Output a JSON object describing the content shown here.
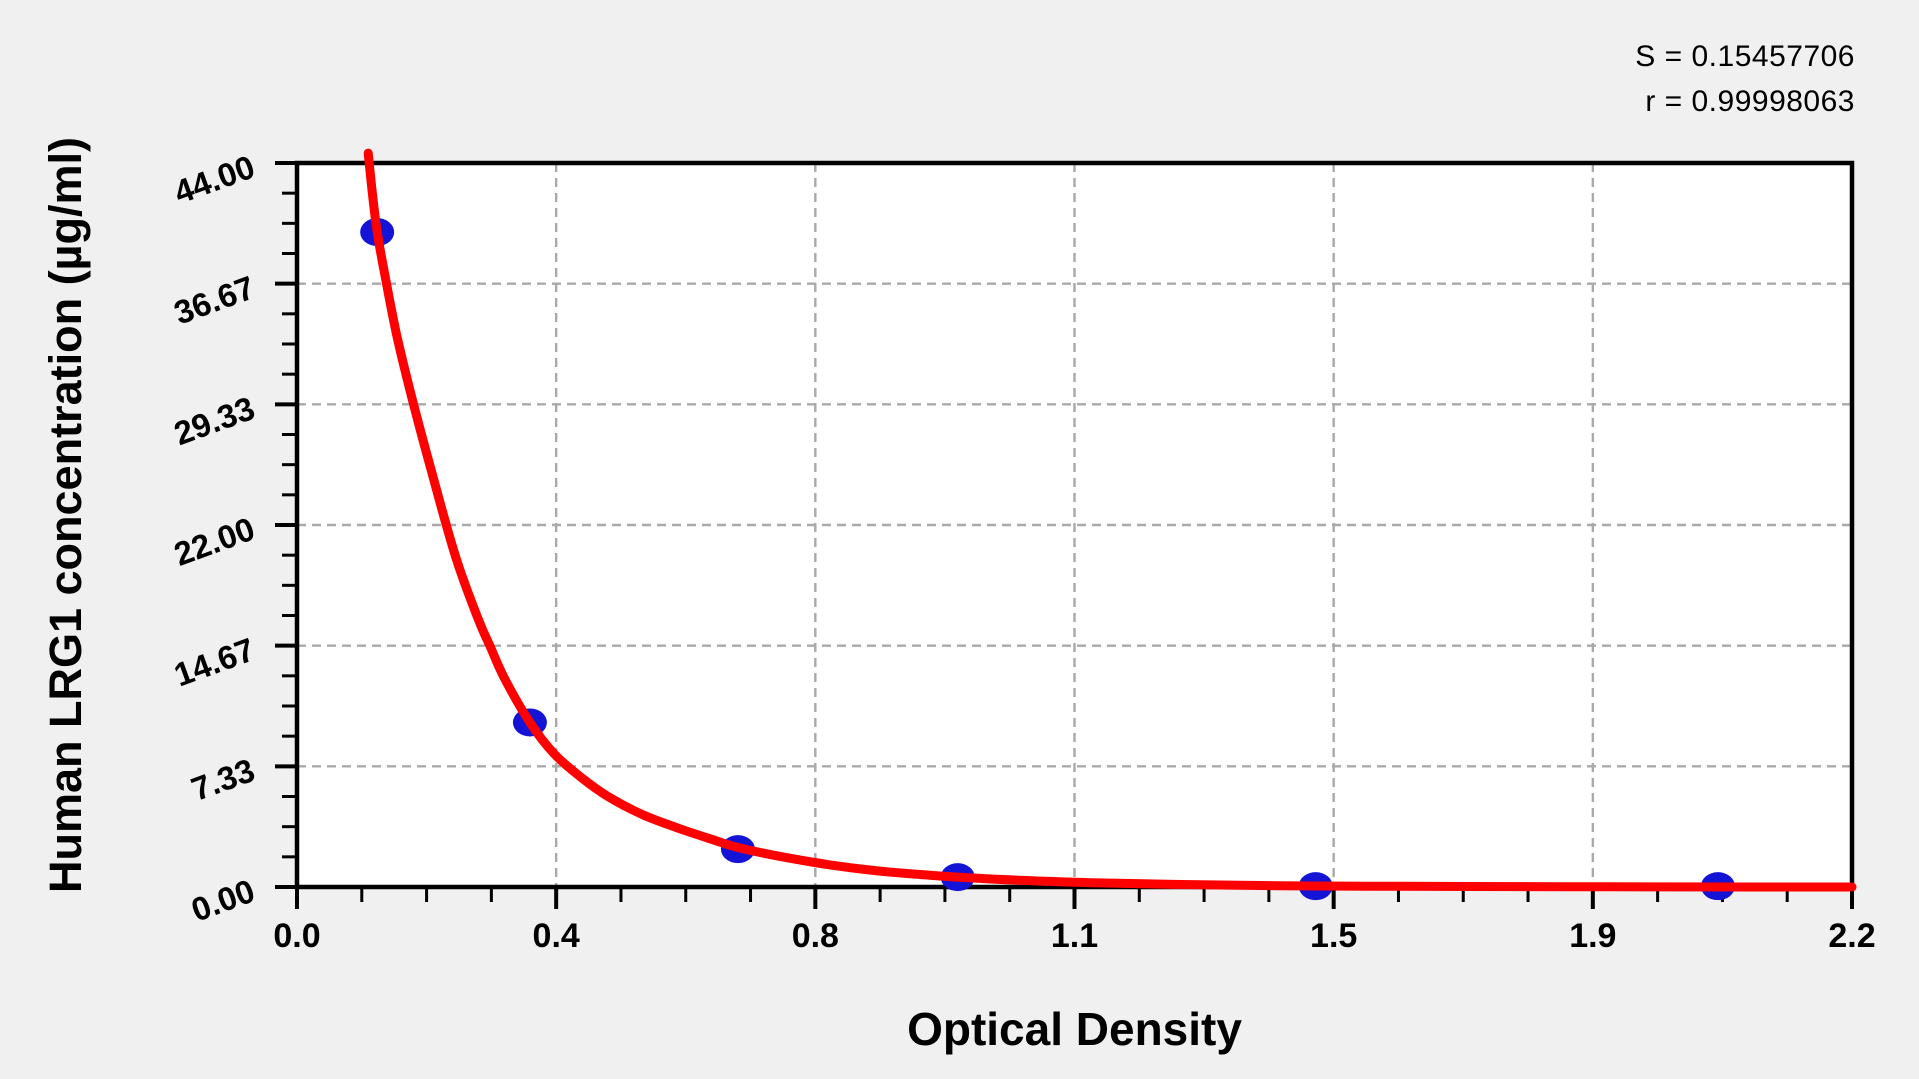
{
  "chart_data": {
    "type": "scatter",
    "title": "",
    "xlabel": "Optical Density",
    "ylabel": "Human LRG1 concentration (µg/ml)",
    "xlim": [
      0,
      2.25
    ],
    "ylim": [
      0,
      44
    ],
    "x_ticks": {
      "values": [
        0,
        0.375,
        0.75,
        1.125,
        1.5,
        1.875,
        2.25
      ],
      "labels": [
        "0.0",
        "0.4",
        "0.8",
        "1.1",
        "1.5",
        "1.9",
        "2.2"
      ],
      "minor_divisions": 4
    },
    "y_ticks": {
      "values": [
        0,
        7.3333,
        14.6667,
        22,
        29.3333,
        36.6667,
        44
      ],
      "labels": [
        "0.00",
        "7.33",
        "14.67",
        "22.00",
        "29.33",
        "36.67",
        "44.00"
      ],
      "minor_divisions": 4
    },
    "grid": {
      "style": "dashed",
      "on_major_ticks": true
    },
    "legend": null,
    "annotations": {
      "s": "S = 0.15457706",
      "r": "r = 0.99998063"
    },
    "series": [
      {
        "name": "standard-points",
        "type": "scatter",
        "color": "#1414d6",
        "points": [
          [
            0.116,
            39.8
          ],
          [
            0.337,
            10.0
          ],
          [
            0.638,
            2.3
          ],
          [
            0.956,
            0.6
          ],
          [
            1.474,
            0.05
          ],
          [
            2.056,
            0.05
          ]
        ]
      },
      {
        "name": "fit-curve",
        "type": "line",
        "color": "#ff0000",
        "points": [
          [
            0.103,
            44.6
          ],
          [
            0.109,
            42.2
          ],
          [
            0.116,
            39.8
          ],
          [
            0.128,
            37.0
          ],
          [
            0.145,
            33.4
          ],
          [
            0.167,
            29.6
          ],
          [
            0.195,
            25.2
          ],
          [
            0.23,
            20.0
          ],
          [
            0.262,
            16.3
          ],
          [
            0.279,
            14.67
          ],
          [
            0.3,
            12.7
          ],
          [
            0.337,
            10.0
          ],
          [
            0.372,
            8.1
          ],
          [
            0.41,
            6.7
          ],
          [
            0.45,
            5.5
          ],
          [
            0.5,
            4.4
          ],
          [
            0.55,
            3.6
          ],
          [
            0.6,
            2.9
          ],
          [
            0.638,
            2.4
          ],
          [
            0.7,
            1.85
          ],
          [
            0.77,
            1.35
          ],
          [
            0.84,
            0.98
          ],
          [
            0.92,
            0.7
          ],
          [
            0.956,
            0.6
          ],
          [
            1.05,
            0.4
          ],
          [
            1.15,
            0.26
          ],
          [
            1.28,
            0.15
          ],
          [
            1.42,
            0.08
          ],
          [
            1.55,
            0.05
          ],
          [
            1.7,
            0.03
          ],
          [
            1.9,
            0.01
          ],
          [
            2.1,
            0.0
          ],
          [
            2.25,
            0.0
          ]
        ]
      }
    ],
    "colors": {
      "background": "#f0f0f0",
      "plot_background": "#ffffff",
      "axis": "#000000",
      "grid": "#a9a9a9",
      "curve": "#ff0000",
      "points": "#1414d6"
    }
  }
}
